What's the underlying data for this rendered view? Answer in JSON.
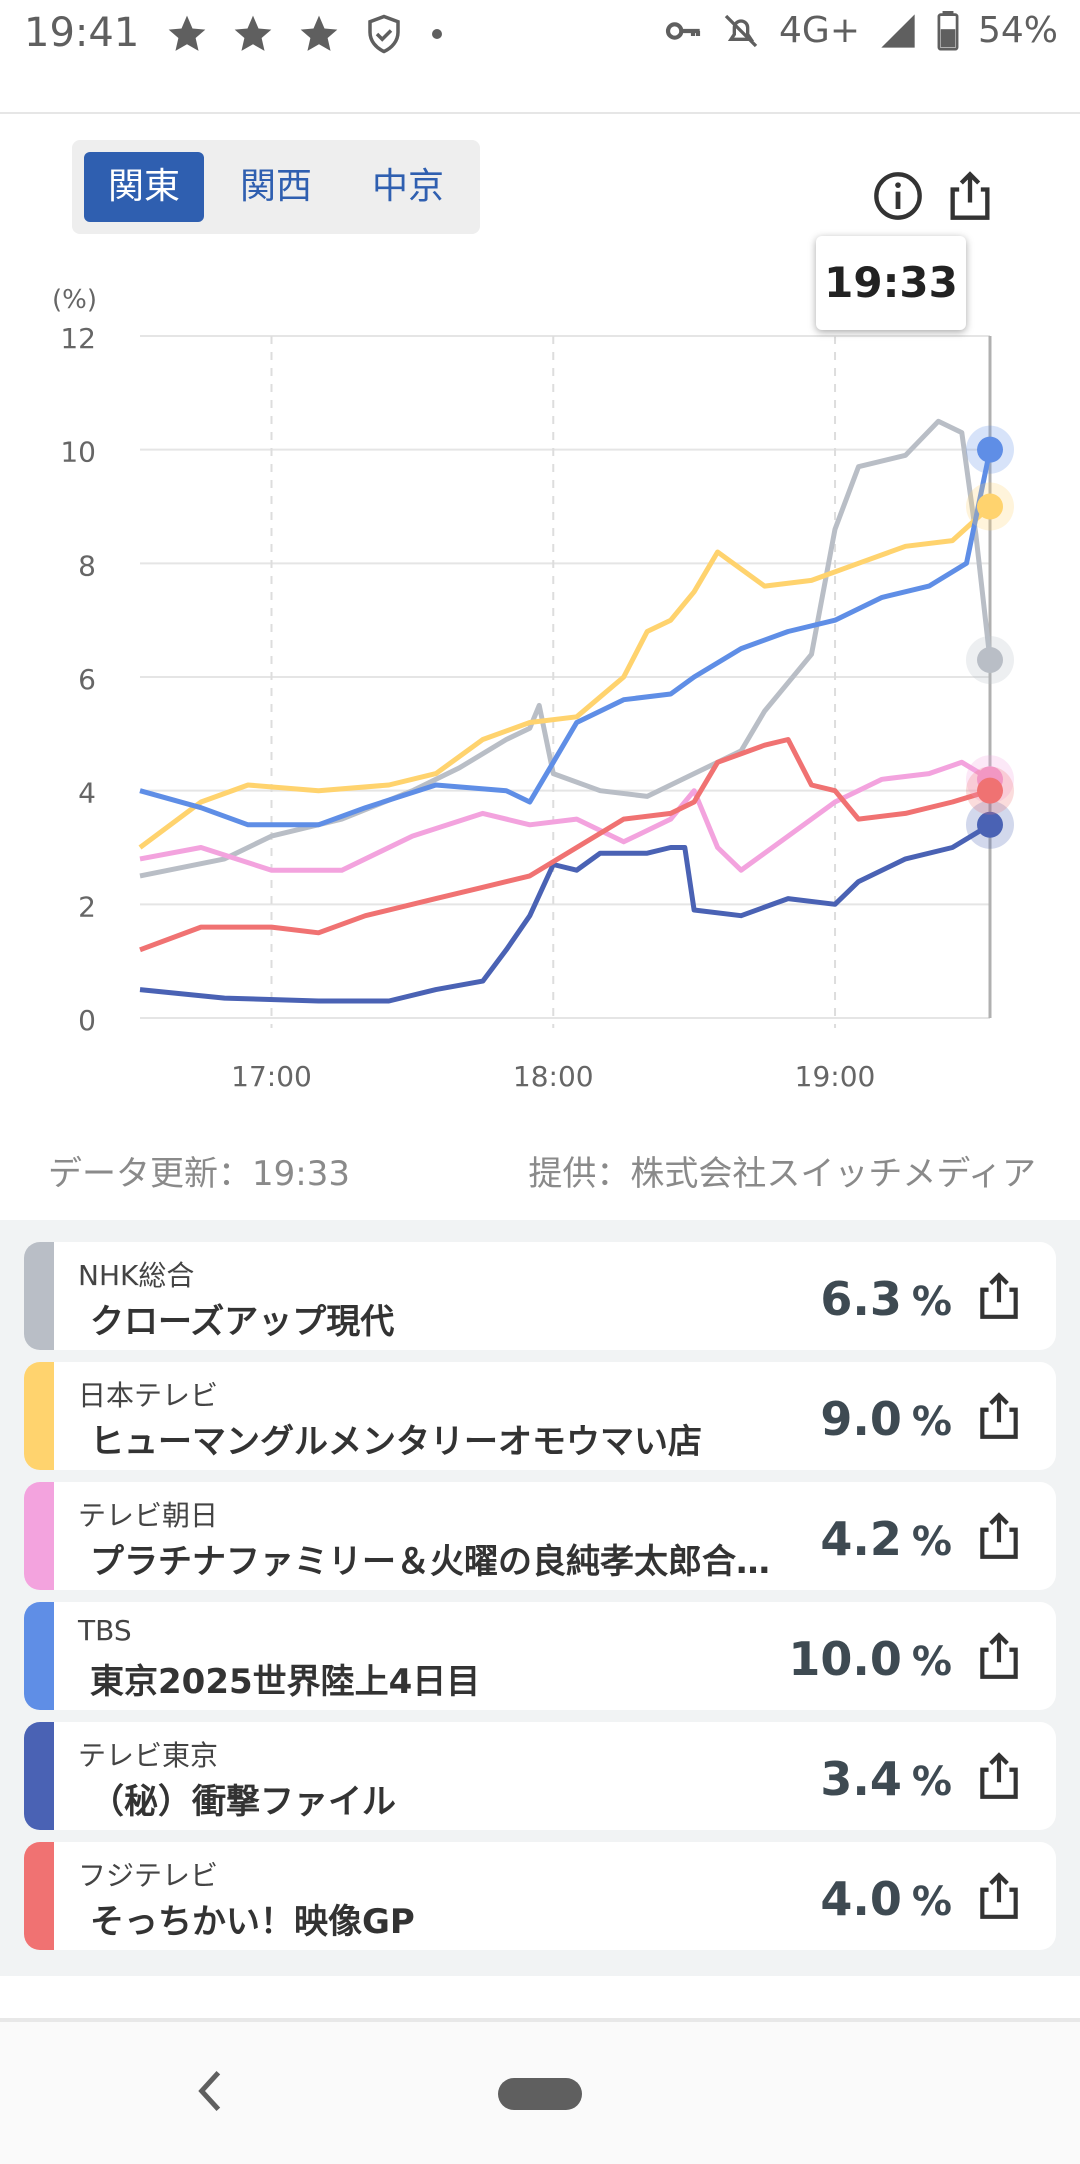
{
  "status_bar": {
    "time": "19:41",
    "network": "4G+",
    "battery": "54%",
    "icons": [
      "star-icon",
      "star-icon",
      "star-icon",
      "shield-check-icon",
      "dot-icon",
      "key-icon",
      "bell-off-icon",
      "signal-icon",
      "battery-icon"
    ]
  },
  "region_tabs": [
    {
      "label": "関東",
      "active": true
    },
    {
      "label": "関西",
      "active": false
    },
    {
      "label": "中京",
      "active": false
    }
  ],
  "tooltip_time": "19:33",
  "footer": {
    "updated": "データ更新：19:33",
    "provider": "提供：株式会社スイッチメディア"
  },
  "chart_data": {
    "type": "line",
    "y_unit": "(%)",
    "ylim": [
      0,
      12
    ],
    "yticks": [
      "0",
      "2",
      "4",
      "6",
      "8",
      "10",
      "12"
    ],
    "xlim": [
      "16:32",
      "19:33"
    ],
    "xticks": [
      {
        "label": "17:00",
        "t": "17:00"
      },
      {
        "label": "18:00",
        "t": "18:00"
      },
      {
        "label": "19:00",
        "t": "19:00"
      }
    ],
    "series": [
      {
        "name": "NHK総合",
        "color": "#b9bec6",
        "points": [
          [
            "16:32",
            2.5
          ],
          [
            "16:50",
            2.8
          ],
          [
            "17:00",
            3.2
          ],
          [
            "17:15",
            3.5
          ],
          [
            "17:30",
            4.0
          ],
          [
            "17:40",
            4.4
          ],
          [
            "17:50",
            4.9
          ],
          [
            "17:55",
            5.1
          ],
          [
            "17:57",
            5.5
          ],
          [
            "18:00",
            4.3
          ],
          [
            "18:10",
            4.0
          ],
          [
            "18:20",
            3.9
          ],
          [
            "18:30",
            4.3
          ],
          [
            "18:40",
            4.7
          ],
          [
            "18:45",
            5.4
          ],
          [
            "18:50",
            5.9
          ],
          [
            "18:55",
            6.4
          ],
          [
            "19:00",
            8.6
          ],
          [
            "19:05",
            9.7
          ],
          [
            "19:15",
            9.9
          ],
          [
            "19:22",
            10.5
          ],
          [
            "19:27",
            10.3
          ],
          [
            "19:30",
            8.5
          ],
          [
            "19:33",
            6.3
          ]
        ]
      },
      {
        "name": "日本テレビ",
        "color": "#ffd36e",
        "points": [
          [
            "16:32",
            3.0
          ],
          [
            "16:45",
            3.8
          ],
          [
            "16:55",
            4.1
          ],
          [
            "17:10",
            4.0
          ],
          [
            "17:25",
            4.1
          ],
          [
            "17:35",
            4.3
          ],
          [
            "17:45",
            4.9
          ],
          [
            "17:55",
            5.2
          ],
          [
            "18:05",
            5.3
          ],
          [
            "18:15",
            6.0
          ],
          [
            "18:20",
            6.8
          ],
          [
            "18:25",
            7.0
          ],
          [
            "18:30",
            7.5
          ],
          [
            "18:35",
            8.2
          ],
          [
            "18:45",
            7.6
          ],
          [
            "18:55",
            7.7
          ],
          [
            "19:05",
            8.0
          ],
          [
            "19:15",
            8.3
          ],
          [
            "19:25",
            8.4
          ],
          [
            "19:33",
            9.0
          ]
        ]
      },
      {
        "name": "テレビ朝日",
        "color": "#f3a3de",
        "points": [
          [
            "16:32",
            2.8
          ],
          [
            "16:45",
            3.0
          ],
          [
            "17:00",
            2.6
          ],
          [
            "17:15",
            2.6
          ],
          [
            "17:30",
            3.2
          ],
          [
            "17:45",
            3.6
          ],
          [
            "17:55",
            3.4
          ],
          [
            "18:05",
            3.5
          ],
          [
            "18:15",
            3.1
          ],
          [
            "18:25",
            3.5
          ],
          [
            "18:30",
            4.0
          ],
          [
            "18:35",
            3.0
          ],
          [
            "18:40",
            2.6
          ],
          [
            "18:50",
            3.2
          ],
          [
            "19:00",
            3.8
          ],
          [
            "19:10",
            4.2
          ],
          [
            "19:20",
            4.3
          ],
          [
            "19:27",
            4.5
          ],
          [
            "19:33",
            4.2
          ]
        ]
      },
      {
        "name": "TBS",
        "color": "#5f8ee6",
        "points": [
          [
            "16:32",
            4.0
          ],
          [
            "16:45",
            3.7
          ],
          [
            "16:55",
            3.4
          ],
          [
            "17:10",
            3.4
          ],
          [
            "17:20",
            3.7
          ],
          [
            "17:35",
            4.1
          ],
          [
            "17:50",
            4.0
          ],
          [
            "17:55",
            3.8
          ],
          [
            "18:00",
            4.5
          ],
          [
            "18:05",
            5.2
          ],
          [
            "18:15",
            5.6
          ],
          [
            "18:25",
            5.7
          ],
          [
            "18:30",
            6.0
          ],
          [
            "18:40",
            6.5
          ],
          [
            "18:50",
            6.8
          ],
          [
            "19:00",
            7.0
          ],
          [
            "19:10",
            7.4
          ],
          [
            "19:20",
            7.6
          ],
          [
            "19:28",
            8.0
          ],
          [
            "19:33",
            10.0
          ]
        ]
      },
      {
        "name": "テレビ東京",
        "color": "#4a62b4",
        "points": [
          [
            "16:32",
            0.5
          ],
          [
            "16:50",
            0.35
          ],
          [
            "17:10",
            0.3
          ],
          [
            "17:25",
            0.3
          ],
          [
            "17:35",
            0.5
          ],
          [
            "17:45",
            0.65
          ],
          [
            "17:50",
            1.2
          ],
          [
            "17:55",
            1.8
          ],
          [
            "18:00",
            2.7
          ],
          [
            "18:05",
            2.6
          ],
          [
            "18:10",
            2.9
          ],
          [
            "18:20",
            2.9
          ],
          [
            "18:25",
            3.0
          ],
          [
            "18:28",
            3.0
          ],
          [
            "18:30",
            1.9
          ],
          [
            "18:40",
            1.8
          ],
          [
            "18:50",
            2.1
          ],
          [
            "19:00",
            2.0
          ],
          [
            "19:05",
            2.4
          ],
          [
            "19:15",
            2.8
          ],
          [
            "19:25",
            3.0
          ],
          [
            "19:33",
            3.4
          ]
        ]
      },
      {
        "name": "フジテレビ",
        "color": "#f07272",
        "points": [
          [
            "16:32",
            1.2
          ],
          [
            "16:45",
            1.6
          ],
          [
            "17:00",
            1.6
          ],
          [
            "17:10",
            1.5
          ],
          [
            "17:20",
            1.8
          ],
          [
            "17:35",
            2.1
          ],
          [
            "17:45",
            2.3
          ],
          [
            "17:55",
            2.5
          ],
          [
            "18:05",
            3.0
          ],
          [
            "18:15",
            3.5
          ],
          [
            "18:25",
            3.6
          ],
          [
            "18:30",
            3.8
          ],
          [
            "18:35",
            4.5
          ],
          [
            "18:45",
            4.8
          ],
          [
            "18:50",
            4.9
          ],
          [
            "18:55",
            4.1
          ],
          [
            "19:00",
            4.0
          ],
          [
            "19:05",
            3.5
          ],
          [
            "19:15",
            3.6
          ],
          [
            "19:25",
            3.8
          ],
          [
            "19:33",
            4.0
          ]
        ]
      }
    ]
  },
  "programs": [
    {
      "channel": "NHK総合",
      "title": "クローズアップ現代",
      "rate": "6.3",
      "unit": "%",
      "color": "#b9bec6"
    },
    {
      "channel": "日本テレビ",
      "title": "ヒューマングルメンタリーオモウマい店",
      "rate": "9.0",
      "unit": "%",
      "color": "#ffd36e"
    },
    {
      "channel": "テレビ朝日",
      "title": "プラチナファミリー＆火曜の良純孝太郎合…",
      "rate": "4.2",
      "unit": "%",
      "color": "#f3a3de"
    },
    {
      "channel": "TBS",
      "title": "東京2025世界陸上4日目",
      "rate": "10.0",
      "unit": "%",
      "color": "#5f8ee6"
    },
    {
      "channel": "テレビ東京",
      "title": "（秘）衝撃ファイル",
      "rate": "3.4",
      "unit": "%",
      "color": "#4a62b4"
    },
    {
      "channel": "フジテレビ",
      "title": "そっちかい！映像GP",
      "rate": "4.0",
      "unit": "%",
      "color": "#f07272"
    }
  ]
}
